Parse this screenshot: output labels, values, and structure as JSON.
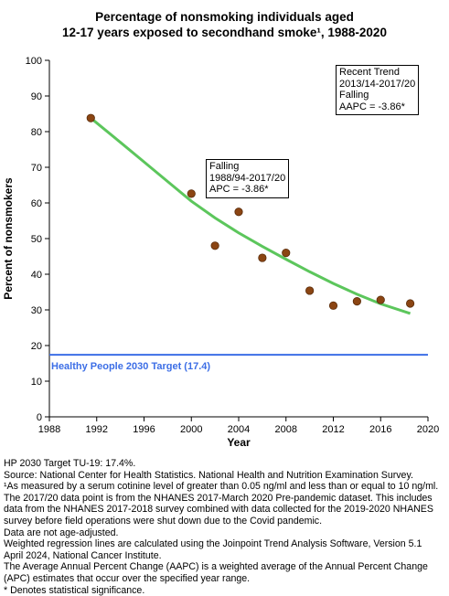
{
  "chart_data": {
    "type": "scatter",
    "title": [
      "Percentage of nonsmoking individuals aged",
      "12-17 years exposed to secondhand smoke¹, 1988-2020"
    ],
    "xlabel": "Year",
    "ylabel": "Percent of nonsmokers",
    "xlim": [
      1988,
      2020
    ],
    "ylim": [
      0,
      100
    ],
    "x_ticks": [
      1988,
      1992,
      1996,
      2000,
      2004,
      2008,
      2012,
      2016,
      2020
    ],
    "y_ticks": [
      0,
      10,
      20,
      30,
      40,
      50,
      60,
      70,
      80,
      90,
      100
    ],
    "grid": false,
    "points": {
      "x": [
        1991.5,
        2000,
        2002,
        2004,
        2006,
        2008,
        2010,
        2012,
        2014,
        2016,
        2018.5
      ],
      "y": [
        83.8,
        62.6,
        48.0,
        57.5,
        44.6,
        46.0,
        35.4,
        31.2,
        32.4,
        32.8,
        31.8
      ],
      "color": "#8B4513"
    },
    "trend_line": {
      "x": [
        1991.5,
        1994,
        1996,
        1998,
        2000,
        2002,
        2004,
        2006,
        2008,
        2010,
        2012,
        2014,
        2016,
        2018.5
      ],
      "y": [
        83.8,
        77.0,
        71.5,
        66.0,
        60.5,
        55.8,
        51.6,
        47.8,
        44.2,
        40.7,
        37.4,
        34.4,
        31.7,
        29.0
      ],
      "color": "#5cc65c"
    },
    "target": {
      "value": 17.4,
      "label": "Healthy People 2030 Target (17.4)",
      "color": "#3c6ee6"
    },
    "annotations": [
      {
        "lines": [
          "Falling",
          "1988/94-2017/20",
          "APC = -3.86*"
        ]
      },
      {
        "lines": [
          "Recent Trend",
          "2013/14-2017/20",
          "Falling",
          "AAPC = -3.86*"
        ]
      }
    ]
  },
  "notes": [
    "HP 2030 Target TU-19: 17.4%.",
    "Source: National Center for Health Statistics. National Health and Nutrition Examination Survey.",
    "¹As measured by a serum cotinine level of greater than 0.05 ng/ml and less than or equal to 10 ng/ml.",
    "The 2017/20 data point is from the NHANES 2017-March 2020 Pre-pandemic dataset. This includes",
    "data from the NHANES 2017-2018 survey combined with data collected for the 2019-2020 NHANES",
    "survey before field operations were shut down due to the Covid pandemic.",
    "Data are not age-adjusted.",
    "Weighted regression lines are calculated using the Joinpoint Trend Analysis Software, Version 5.1",
    "April 2024, National Cancer Institute.",
    "The Average Annual Percent Change (AAPC) is a weighted average of the Annual Percent Change",
    "(APC) estimates that occur over the specified year range.",
    "* Denotes statistical significance."
  ]
}
